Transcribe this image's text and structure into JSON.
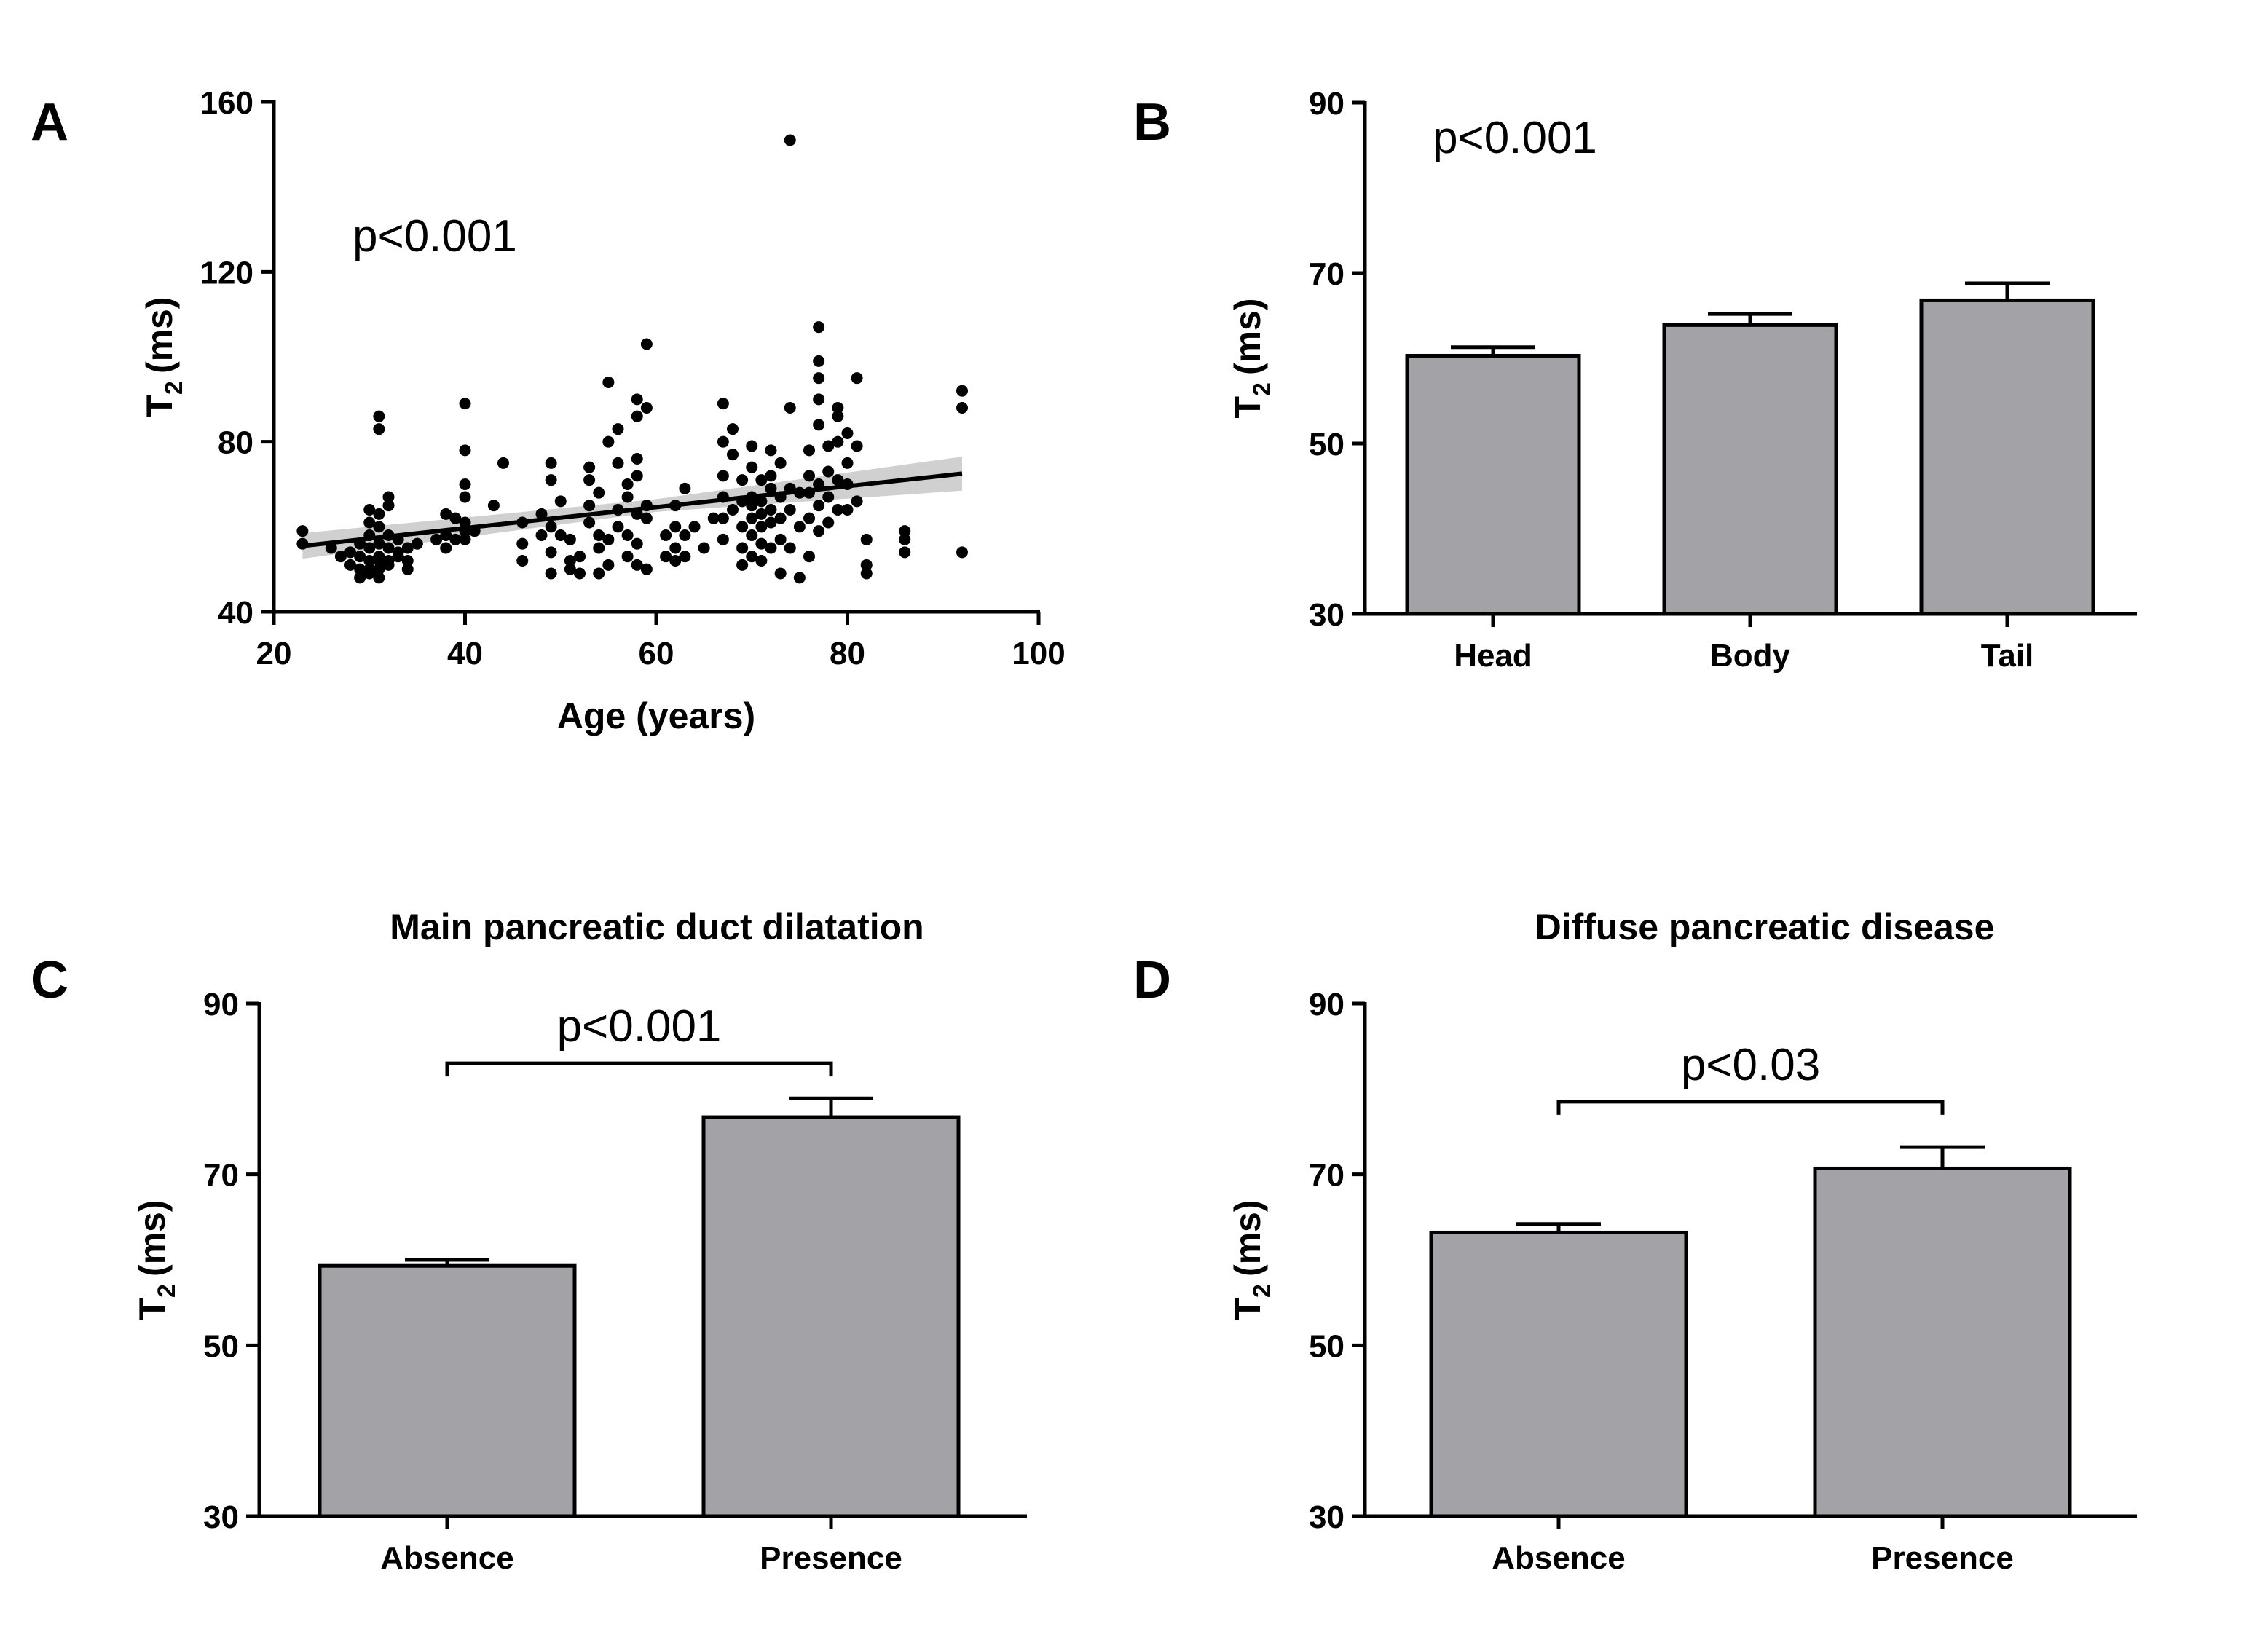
{
  "chart_data": [
    {
      "panel": "A",
      "type": "scatter",
      "title": "",
      "xlabel": "Age (years)",
      "ylabel_main": "T",
      "ylabel_sub": "2",
      "ylabel_unit": "(ms)",
      "xlim": [
        20,
        100
      ],
      "ylim": [
        40,
        160
      ],
      "xticks": [
        20,
        40,
        60,
        80,
        100
      ],
      "yticks": [
        40,
        80,
        120,
        160
      ],
      "annotation": "p<0.001",
      "fit_line": {
        "x": [
          23,
          92
        ],
        "y": [
          55.5,
          72.5
        ]
      },
      "ci_band": {
        "x": [
          23,
          60,
          92
        ],
        "lower": [
          52.5,
          63.5,
          68.5
        ],
        "upper": [
          58.5,
          66.5,
          76.5
        ]
      },
      "colors": {
        "points": "#000000",
        "band": "#c8c8c8"
      },
      "points": [
        [
          23,
          59
        ],
        [
          23,
          56
        ],
        [
          26,
          55
        ],
        [
          27,
          53
        ],
        [
          28,
          54
        ],
        [
          28,
          51
        ],
        [
          29,
          50
        ],
        [
          29,
          48
        ],
        [
          29,
          53
        ],
        [
          29,
          56
        ],
        [
          30,
          52
        ],
        [
          30,
          55
        ],
        [
          30,
          58
        ],
        [
          30,
          61
        ],
        [
          30,
          50
        ],
        [
          30,
          64
        ],
        [
          30,
          49
        ],
        [
          31,
          53
        ],
        [
          31,
          56
        ],
        [
          31,
          60
        ],
        [
          31,
          50
        ],
        [
          31,
          48
        ],
        [
          31,
          52
        ],
        [
          31,
          63
        ],
        [
          31,
          86
        ],
        [
          31,
          83
        ],
        [
          32,
          52
        ],
        [
          32,
          55
        ],
        [
          32,
          58
        ],
        [
          32,
          51
        ],
        [
          32,
          67
        ],
        [
          32,
          65
        ],
        [
          33,
          57
        ],
        [
          33,
          53
        ],
        [
          33,
          54
        ],
        [
          34,
          52
        ],
        [
          34,
          55
        ],
        [
          34,
          50
        ],
        [
          35,
          56
        ],
        [
          37,
          57
        ],
        [
          38,
          55
        ],
        [
          38,
          58
        ],
        [
          38,
          63
        ],
        [
          39,
          57
        ],
        [
          39,
          62
        ],
        [
          40,
          59
        ],
        [
          40,
          57
        ],
        [
          40,
          61
        ],
        [
          40,
          67
        ],
        [
          40,
          70
        ],
        [
          40,
          78
        ],
        [
          40,
          89
        ],
        [
          41,
          59
        ],
        [
          43,
          65
        ],
        [
          44,
          75
        ],
        [
          46,
          52
        ],
        [
          46,
          56
        ],
        [
          46,
          61
        ],
        [
          48,
          58
        ],
        [
          48,
          63
        ],
        [
          49,
          49
        ],
        [
          49,
          54
        ],
        [
          49,
          60
        ],
        [
          49,
          71
        ],
        [
          49,
          75
        ],
        [
          50,
          58
        ],
        [
          50,
          66
        ],
        [
          51,
          57
        ],
        [
          51,
          52
        ],
        [
          51,
          50
        ],
        [
          52,
          49
        ],
        [
          52,
          53
        ],
        [
          53,
          61
        ],
        [
          53,
          65
        ],
        [
          53,
          71
        ],
        [
          53,
          74
        ],
        [
          54,
          49
        ],
        [
          54,
          55
        ],
        [
          54,
          58
        ],
        [
          54,
          68
        ],
        [
          55,
          51
        ],
        [
          55,
          57
        ],
        [
          55,
          80
        ],
        [
          55,
          94
        ],
        [
          56,
          60
        ],
        [
          56,
          64
        ],
        [
          56,
          75
        ],
        [
          56,
          83
        ],
        [
          57,
          53
        ],
        [
          57,
          58
        ],
        [
          57,
          67
        ],
        [
          57,
          70
        ],
        [
          58,
          51
        ],
        [
          58,
          56
        ],
        [
          58,
          63
        ],
        [
          58,
          72
        ],
        [
          58,
          76
        ],
        [
          58,
          86
        ],
        [
          58,
          90
        ],
        [
          59,
          50
        ],
        [
          59,
          62
        ],
        [
          59,
          65
        ],
        [
          59,
          103
        ],
        [
          59,
          88
        ],
        [
          61,
          53
        ],
        [
          61,
          58
        ],
        [
          62,
          55
        ],
        [
          62,
          60
        ],
        [
          62,
          65
        ],
        [
          62,
          52
        ],
        [
          63,
          53
        ],
        [
          63,
          58
        ],
        [
          63,
          69
        ],
        [
          64,
          60
        ],
        [
          65,
          55
        ],
        [
          66,
          62
        ],
        [
          67,
          57
        ],
        [
          67,
          62
        ],
        [
          67,
          67
        ],
        [
          67,
          72
        ],
        [
          67,
          80
        ],
        [
          67,
          89
        ],
        [
          68,
          64
        ],
        [
          68,
          77
        ],
        [
          68,
          83
        ],
        [
          69,
          51
        ],
        [
          69,
          55
        ],
        [
          69,
          60
        ],
        [
          69,
          66
        ],
        [
          69,
          71
        ],
        [
          70,
          53
        ],
        [
          70,
          58
        ],
        [
          70,
          62
        ],
        [
          70,
          65
        ],
        [
          70,
          67
        ],
        [
          70,
          74
        ],
        [
          70,
          79
        ],
        [
          71,
          52
        ],
        [
          71,
          56
        ],
        [
          71,
          60
        ],
        [
          71,
          63
        ],
        [
          71,
          66
        ],
        [
          71,
          71
        ],
        [
          72,
          55
        ],
        [
          72,
          61
        ],
        [
          72,
          64
        ],
        [
          72,
          69
        ],
        [
          72,
          72
        ],
        [
          72,
          78
        ],
        [
          73,
          49
        ],
        [
          73,
          57
        ],
        [
          73,
          62
        ],
        [
          73,
          67
        ],
        [
          73,
          75
        ],
        [
          74,
          55
        ],
        [
          74,
          64
        ],
        [
          74,
          69
        ],
        [
          74,
          88
        ],
        [
          74,
          151
        ],
        [
          75,
          48
        ],
        [
          75,
          60
        ],
        [
          75,
          68
        ],
        [
          76,
          53
        ],
        [
          76,
          62
        ],
        [
          76,
          68
        ],
        [
          76,
          72
        ],
        [
          76,
          78
        ],
        [
          77,
          59
        ],
        [
          77,
          65
        ],
        [
          77,
          70
        ],
        [
          77,
          84
        ],
        [
          77,
          90
        ],
        [
          77,
          95
        ],
        [
          77,
          99
        ],
        [
          77,
          107
        ],
        [
          78,
          61
        ],
        [
          78,
          67
        ],
        [
          78,
          73
        ],
        [
          78,
          79
        ],
        [
          79,
          64
        ],
        [
          79,
          71
        ],
        [
          79,
          80
        ],
        [
          79,
          86
        ],
        [
          79,
          88
        ],
        [
          80,
          64
        ],
        [
          80,
          70
        ],
        [
          80,
          75
        ],
        [
          80,
          82
        ],
        [
          81,
          66
        ],
        [
          81,
          79
        ],
        [
          81,
          95
        ],
        [
          82,
          49
        ],
        [
          82,
          51
        ],
        [
          82,
          57
        ],
        [
          86,
          54
        ],
        [
          86,
          57
        ],
        [
          86,
          59
        ],
        [
          92,
          54
        ],
        [
          92,
          88
        ],
        [
          92,
          92
        ]
      ]
    },
    {
      "panel": "B",
      "type": "bar",
      "title": "",
      "xlabel": "",
      "ylabel_main": "T",
      "ylabel_sub": "2",
      "ylabel_unit": "(ms)",
      "ylim": [
        30,
        90
      ],
      "yticks": [
        30,
        50,
        70,
        90
      ],
      "categories": [
        "Head",
        "Body",
        "Tail"
      ],
      "values": [
        60.3,
        63.9,
        66.8
      ],
      "errors": [
        1.0,
        1.3,
        2.0
      ],
      "annotation": "p<0.001",
      "colors": {
        "bar": "#a3a2a7",
        "edge": "#000000"
      }
    },
    {
      "panel": "C",
      "type": "bar",
      "title": "Main pancreatic duct dilatation",
      "xlabel": "",
      "ylabel_main": "T",
      "ylabel_sub": "2",
      "ylabel_unit": "(ms)",
      "ylim": [
        30,
        90
      ],
      "yticks": [
        30,
        50,
        70,
        90
      ],
      "categories": [
        "Absence",
        "Presence"
      ],
      "values": [
        59.3,
        76.7
      ],
      "errors": [
        0.7,
        2.2
      ],
      "annotation": "p<0.001",
      "bracket_y": 83,
      "colors": {
        "bar": "#a3a2a7",
        "edge": "#000000"
      }
    },
    {
      "panel": "D",
      "type": "bar",
      "title": "Diffuse pancreatic disease",
      "xlabel": "",
      "ylabel_main": "T",
      "ylabel_sub": "2",
      "ylabel_unit": "(ms)",
      "ylim": [
        30,
        90
      ],
      "yticks": [
        30,
        50,
        70,
        90
      ],
      "categories": [
        "Absence",
        "Presence"
      ],
      "values": [
        63.2,
        70.7
      ],
      "errors": [
        1.0,
        2.5
      ],
      "annotation": "p<0.03",
      "bracket_y": 78.5,
      "colors": {
        "bar": "#a3a2a7",
        "edge": "#000000"
      }
    }
  ]
}
